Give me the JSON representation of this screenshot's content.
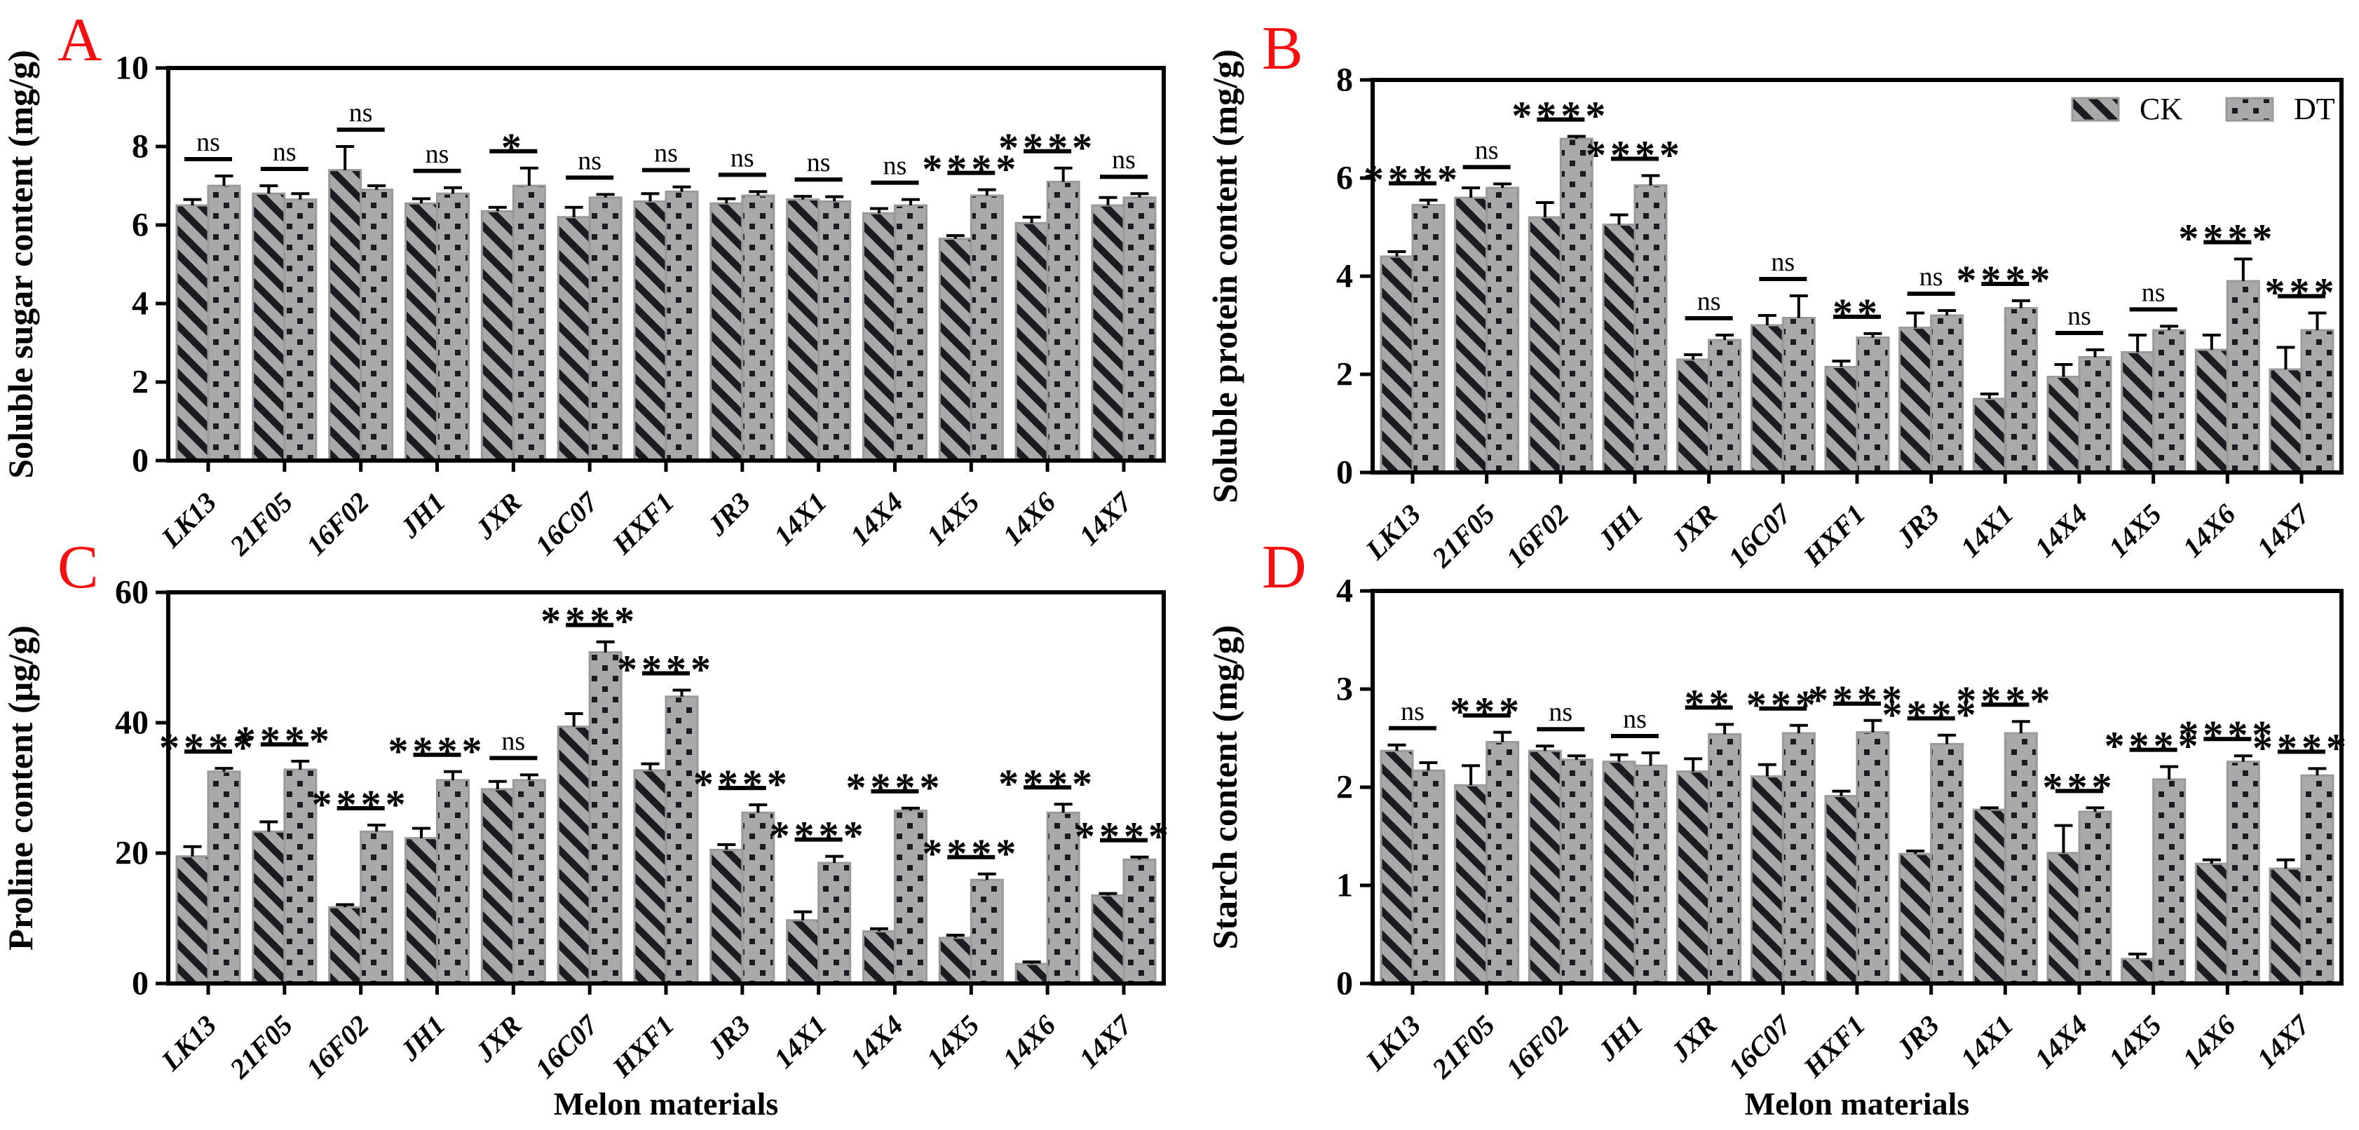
{
  "figure": {
    "background": "#ffffff",
    "panel_letter_color": "#f50f0f",
    "bar_fill": "#a9a9a9",
    "pattern_color": "#1b1b22",
    "bar_outline": "#9a9a9a",
    "axis_color": "#000000",
    "x_axis_title": "Melon materials",
    "legend": {
      "entries": [
        {
          "label": "CK",
          "pattern": "hatch"
        },
        {
          "label": "DT",
          "pattern": "dots"
        }
      ]
    }
  },
  "chart_data": [
    {
      "panel": "A",
      "type": "bar",
      "ylabel": "Soluble sugar content (mg/g)",
      "xlabel": "",
      "ylim": [
        0,
        10
      ],
      "yticks": [
        0,
        2,
        4,
        6,
        8,
        10
      ],
      "legend_position": "none",
      "categories": [
        "LK13",
        "21F05",
        "16F02",
        "JH1",
        "JXR",
        "16C07",
        "HXF1",
        "JR3",
        "14X1",
        "14X4",
        "14X5",
        "14X6",
        "14X7"
      ],
      "series": [
        {
          "name": "CK",
          "values": [
            6.5,
            6.8,
            7.4,
            6.55,
            6.35,
            6.2,
            6.6,
            6.55,
            6.65,
            6.3,
            5.65,
            6.05,
            6.5
          ],
          "errors": [
            0.15,
            0.2,
            0.6,
            0.12,
            0.1,
            0.25,
            0.2,
            0.12,
            0.08,
            0.12,
            0.08,
            0.15,
            0.2
          ]
        },
        {
          "name": "DT",
          "values": [
            7.0,
            6.65,
            6.9,
            6.8,
            7.0,
            6.7,
            6.85,
            6.75,
            6.6,
            6.5,
            6.75,
            7.1,
            6.7
          ],
          "errors": [
            0.25,
            0.15,
            0.1,
            0.15,
            0.45,
            0.08,
            0.12,
            0.1,
            0.12,
            0.15,
            0.15,
            0.35,
            0.1
          ]
        }
      ],
      "significance": [
        "ns",
        "ns",
        "ns",
        "ns",
        "*",
        "ns",
        "ns",
        "ns",
        "ns",
        "ns",
        "****",
        "****",
        "ns"
      ]
    },
    {
      "panel": "B",
      "type": "bar",
      "ylabel": "Soluble protein content (mg/g)",
      "xlabel": "",
      "ylim": [
        0,
        8
      ],
      "yticks": [
        0,
        2,
        4,
        6,
        8
      ],
      "legend_position": "top-right-inside",
      "categories": [
        "LK13",
        "21F05",
        "16F02",
        "JH1",
        "JXR",
        "16C07",
        "HXF1",
        "JR3",
        "14X1",
        "14X4",
        "14X5",
        "14X6",
        "14X7"
      ],
      "series": [
        {
          "name": "CK",
          "values": [
            4.4,
            5.6,
            5.2,
            5.05,
            2.3,
            3.0,
            2.15,
            2.95,
            1.5,
            1.95,
            2.45,
            2.5,
            2.1
          ],
          "errors": [
            0.1,
            0.2,
            0.3,
            0.2,
            0.1,
            0.2,
            0.12,
            0.3,
            0.1,
            0.25,
            0.35,
            0.3,
            0.45
          ]
        },
        {
          "name": "DT",
          "values": [
            5.45,
            5.8,
            6.8,
            5.85,
            2.7,
            3.15,
            2.75,
            3.2,
            3.35,
            2.35,
            2.9,
            3.9,
            2.9
          ],
          "errors": [
            0.1,
            0.08,
            0.05,
            0.2,
            0.1,
            0.45,
            0.08,
            0.1,
            0.15,
            0.15,
            0.08,
            0.45,
            0.35
          ]
        }
      ],
      "significance": [
        "****",
        "ns",
        "****",
        "****",
        "ns",
        "ns",
        "**",
        "ns",
        "****",
        "ns",
        "ns",
        "****",
        "***"
      ]
    },
    {
      "panel": "C",
      "type": "bar",
      "ylabel": "Proline content (µg/g)",
      "xlabel": "Melon materials",
      "ylim": [
        0,
        60
      ],
      "yticks": [
        0,
        20,
        40,
        60
      ],
      "legend_position": "none",
      "categories": [
        "LK13",
        "21F05",
        "16F02",
        "JH1",
        "JXR",
        "16C07",
        "HXF1",
        "JR3",
        "14X1",
        "14X4",
        "14X5",
        "14X6",
        "14X7"
      ],
      "series": [
        {
          "name": "CK",
          "values": [
            19.5,
            23.3,
            11.7,
            22.3,
            29.8,
            39.4,
            32.7,
            20.5,
            9.7,
            8.0,
            7.0,
            3.0,
            13.5
          ],
          "errors": [
            1.5,
            1.5,
            0.4,
            1.5,
            1.2,
            2.0,
            1.0,
            0.8,
            1.3,
            0.4,
            0.4,
            0.3,
            0.3
          ]
        },
        {
          "name": "DT",
          "values": [
            32.5,
            32.8,
            23.3,
            31.2,
            31.2,
            50.8,
            44.0,
            26.2,
            18.5,
            26.5,
            15.9,
            26.2,
            19.0
          ],
          "errors": [
            0.5,
            1.3,
            1.0,
            1.3,
            0.8,
            1.6,
            1.0,
            1.2,
            1.0,
            0.4,
            0.9,
            1.3,
            0.4
          ]
        }
      ],
      "significance": [
        "****",
        "****",
        "****",
        "****",
        "ns",
        "****",
        "****",
        "****",
        "****",
        "****",
        "****",
        "****",
        "****"
      ]
    },
    {
      "panel": "D",
      "type": "bar",
      "ylabel": "Starch content (mg/g)",
      "xlabel": "Melon materials",
      "ylim": [
        0,
        4
      ],
      "yticks": [
        0,
        1,
        2,
        3,
        4
      ],
      "legend_position": "none",
      "categories": [
        "LK13",
        "21F05",
        "16F02",
        "JH1",
        "JXR",
        "16C07",
        "HXF1",
        "JR3",
        "14X1",
        "14X4",
        "14X5",
        "14X6",
        "14X7"
      ],
      "series": [
        {
          "name": "CK",
          "values": [
            2.37,
            2.02,
            2.37,
            2.26,
            2.16,
            2.11,
            1.91,
            1.32,
            1.77,
            1.33,
            0.25,
            1.22,
            1.17
          ],
          "errors": [
            0.06,
            0.2,
            0.05,
            0.07,
            0.13,
            0.12,
            0.05,
            0.03,
            0.02,
            0.28,
            0.05,
            0.04,
            0.09
          ]
        },
        {
          "name": "DT",
          "values": [
            2.17,
            2.46,
            2.28,
            2.22,
            2.54,
            2.55,
            2.56,
            2.44,
            2.55,
            1.75,
            2.08,
            2.26,
            2.12
          ],
          "errors": [
            0.08,
            0.1,
            0.04,
            0.13,
            0.1,
            0.08,
            0.12,
            0.09,
            0.12,
            0.04,
            0.13,
            0.06,
            0.07
          ]
        }
      ],
      "significance": [
        "ns",
        "***",
        "ns",
        "ns",
        "**",
        "***",
        "****",
        "****",
        "****",
        "***",
        "****",
        "****",
        "****"
      ]
    }
  ]
}
